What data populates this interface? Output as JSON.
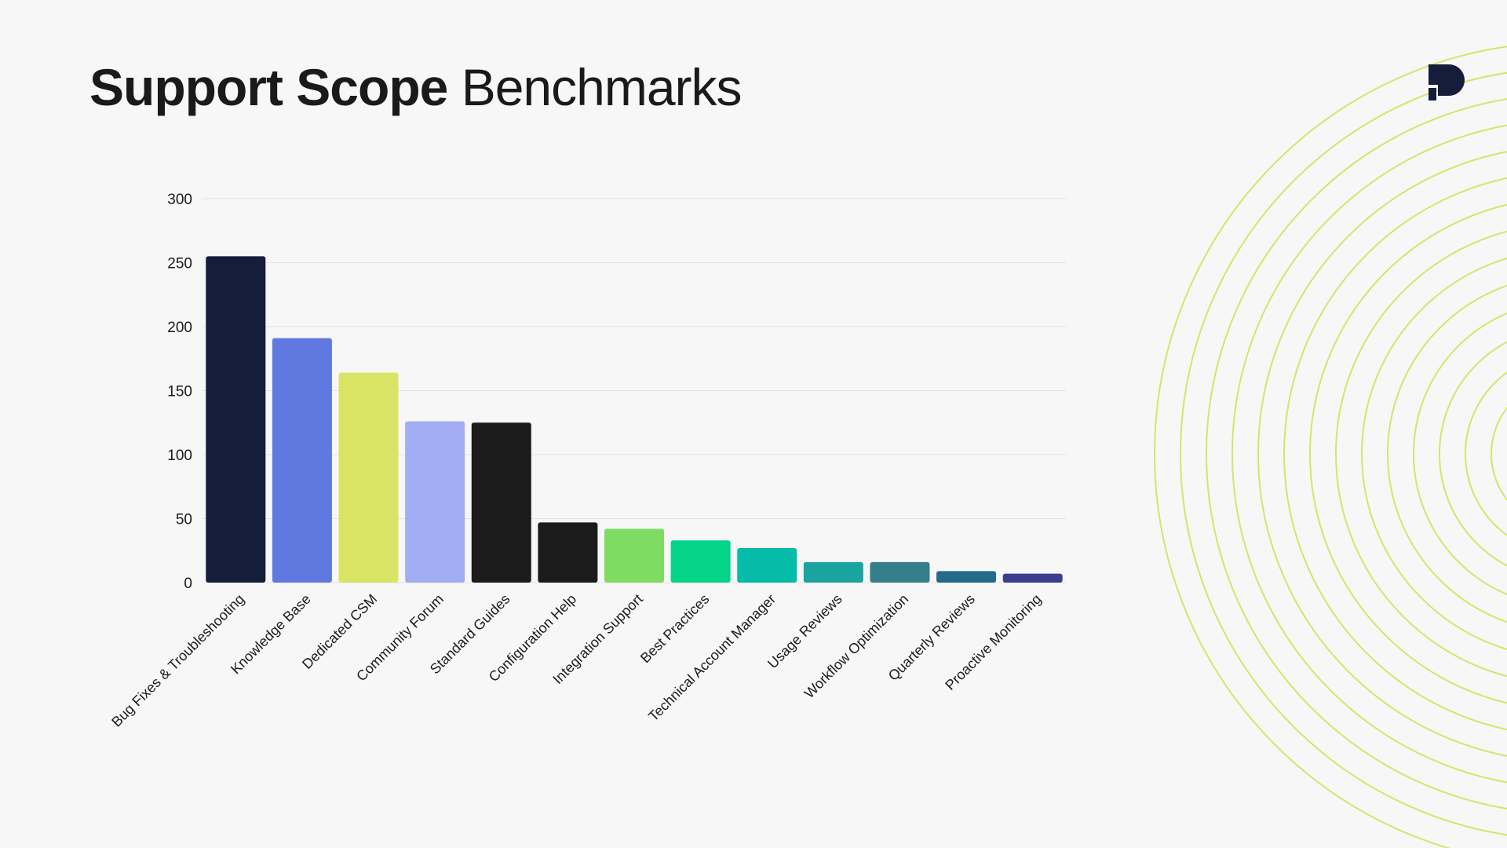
{
  "title": {
    "bold": "Support Scope",
    "light": "Benchmarks"
  },
  "icons": {
    "logo": "brand-logo-icon",
    "decoration": "concentric-rings"
  },
  "colors": {
    "background": "#f7f7f7",
    "logo": "#141d3a",
    "rings": "#d6e46a",
    "grid": "#e2e2e2"
  },
  "chart_data": {
    "type": "bar",
    "title": "",
    "xlabel": "",
    "ylabel": "",
    "ylim": [
      0,
      300
    ],
    "yticks": [
      0,
      50,
      100,
      150,
      200,
      250,
      300
    ],
    "grid": true,
    "legend": "none",
    "categories": [
      "Bug Fixes & Troubleshooting",
      "Knowledge Base",
      "Dedicated CSM",
      "Community Forum",
      "Standard Guides",
      "Configuration Help",
      "Integration Support",
      "Best Practices",
      "Technical Account Manager",
      "Usage Reviews",
      "Workflow Optimization",
      "Quarterly Reviews",
      "Proactive Monitoring"
    ],
    "values": [
      255,
      191,
      164,
      126,
      125,
      47,
      42,
      33,
      27,
      16,
      16,
      9,
      7
    ],
    "bar_colors": [
      "#141d3a",
      "#6079e1",
      "#d9e465",
      "#a1acf3",
      "#1b1b1b",
      "#1b1b1b",
      "#7edc62",
      "#03d488",
      "#04bca8",
      "#1ba3a0",
      "#347f8a",
      "#236a8c",
      "#3b3e8c"
    ]
  }
}
